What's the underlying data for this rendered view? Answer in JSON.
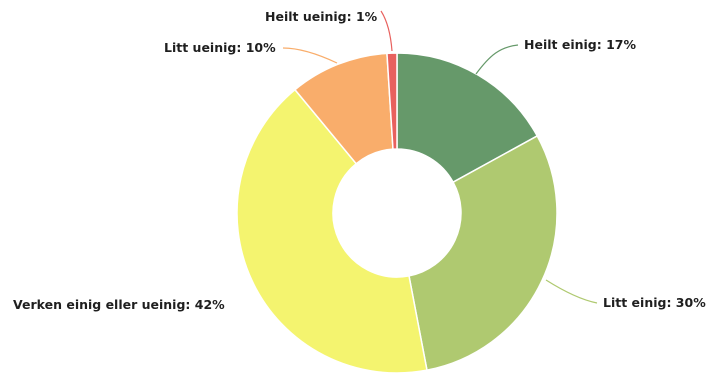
{
  "chart_data": {
    "type": "pie",
    "variant": "donut",
    "title": "",
    "categories": [
      "Heilt einig",
      "Litt einig",
      "Verken einig eller ueinig",
      "Litt ueinig",
      "Heilt ueinig"
    ],
    "values": [
      17,
      30,
      42,
      10,
      1
    ],
    "unit": "%",
    "colors": [
      "#66996a",
      "#afc970",
      "#f4f46f",
      "#f9ad6b",
      "#e8615e"
    ],
    "labels": [
      {
        "text": "Heilt einig: 17%"
      },
      {
        "text": "Litt einig: 30%"
      },
      {
        "text": "Verken einig eller ueinig: 42%"
      },
      {
        "text": "Litt ueinig: 10%"
      },
      {
        "text": "Heilt ueinig: 1%"
      }
    ],
    "legend": "none"
  }
}
